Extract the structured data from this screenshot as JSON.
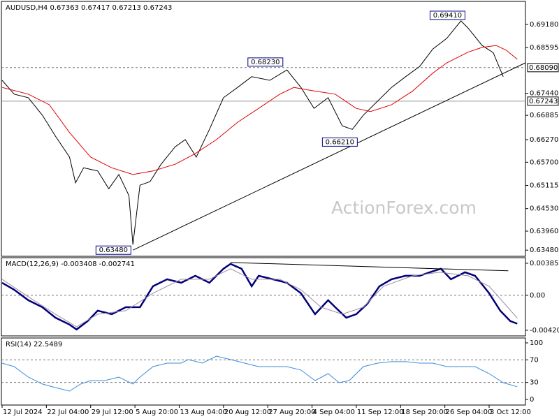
{
  "chart_data": [
    {
      "type": "line",
      "title": "AUDUSD,H4  0.67363 0.67417 0.67213 0.67243",
      "watermark": "ActionForex.com",
      "xlim": [
        -0.7,
        520.1
      ],
      "ylim": [
        0.63325,
        0.69762
      ],
      "yticks": [
        {
          "value": 0.6918,
          "label": "0.69180"
        },
        {
          "value": 0.68595,
          "label": "0.68595"
        },
        {
          "value": 0.6744,
          "label": "0.67440"
        },
        {
          "value": 0.66885,
          "label": "0.66885"
        },
        {
          "value": 0.6627,
          "label": "0.66270"
        },
        {
          "value": 0.657,
          "label": "0.65700"
        },
        {
          "value": 0.65115,
          "label": "0.65115"
        },
        {
          "value": 0.6453,
          "label": "0.64530"
        },
        {
          "value": 0.6396,
          "label": "0.63960"
        },
        {
          "value": 0.6348,
          "label": "0.63480"
        }
      ],
      "series": [
        {
          "color": "#000000",
          "width": 1,
          "x": [
            0,
            12,
            26,
            40,
            53,
            67,
            73,
            81,
            95,
            106,
            116,
            126,
            130,
            137,
            147,
            158,
            172,
            182,
            193,
            206,
            220,
            234,
            248,
            266,
            283,
            297,
            310,
            324,
            338,
            348,
            359,
            373,
            387,
            401,
            415,
            428,
            442,
            456,
            463,
            477,
            488,
            498
          ],
          "values": [
            0.6777,
            0.6742,
            0.6733,
            0.6689,
            0.6636,
            0.6583,
            0.6518,
            0.6556,
            0.6548,
            0.6503,
            0.6539,
            0.6486,
            0.6362,
            0.6512,
            0.6521,
            0.6565,
            0.6609,
            0.6627,
            0.6583,
            0.6653,
            0.6733,
            0.6759,
            0.6786,
            0.6777,
            0.6803,
            0.6759,
            0.6706,
            0.6733,
            0.6662,
            0.6653,
            0.6689,
            0.6724,
            0.6759,
            0.6786,
            0.6812,
            0.6856,
            0.6883,
            0.6927,
            0.6909,
            0.6865,
            0.6847,
            0.6786
          ]
        },
        {
          "color": "#e00000",
          "width": 1,
          "x": [
            0,
            26,
            47,
            67,
            88,
            109,
            130,
            150,
            172,
            192,
            213,
            234,
            255,
            276,
            290,
            310,
            331,
            352,
            366,
            387,
            408,
            428,
            442,
            463,
            477,
            491,
            501,
            512
          ],
          "values": [
            0.6759,
            0.6742,
            0.6715,
            0.6645,
            0.6583,
            0.6556,
            0.6539,
            0.6548,
            0.6565,
            0.6592,
            0.6627,
            0.6671,
            0.6706,
            0.6742,
            0.6759,
            0.675,
            0.6742,
            0.6706,
            0.6698,
            0.6715,
            0.675,
            0.6795,
            0.6821,
            0.6848,
            0.686,
            0.6865,
            0.6853,
            0.683
          ]
        },
        {
          "color": "#000000",
          "width": 1,
          "x": [
            130,
            520
          ],
          "values": [
            0.6348,
            0.6821
          ]
        }
      ],
      "levels": [
        {
          "value": 0.6809,
          "label": "0.68090",
          "style": "dashed"
        },
        {
          "value": 0.67243,
          "label": "0.67243",
          "style": "solid"
        }
      ],
      "annotations": [
        {
          "x": 128,
          "value": 0.6348,
          "label": "0.63480"
        },
        {
          "x": 279,
          "value": 0.6823,
          "label": "0.68230"
        },
        {
          "x": 353,
          "value": 0.6621,
          "label": "0.66210"
        },
        {
          "x": 460,
          "value": 0.6941,
          "label": "0.69410"
        }
      ]
    },
    {
      "type": "line",
      "title": "MACD(12,26,9) -0.003408 -0.002741",
      "xlim": [
        -0.7,
        520.1
      ],
      "ylim": [
        -0.00488,
        0.00452
      ],
      "yticks": [
        {
          "value": 0.003852,
          "label": "0.003852"
        },
        {
          "value": 0,
          "label": "0.00"
        },
        {
          "value": -0.004204,
          "label": "-0.004204"
        }
      ],
      "series": [
        {
          "color": "#00007a",
          "width": 2.5,
          "x": [
            0,
            12,
            26,
            40,
            53,
            67,
            74,
            85,
            95,
            109,
            123,
            137,
            150,
            164,
            178,
            192,
            206,
            220,
            227,
            238,
            248,
            255,
            269,
            283,
            297,
            311,
            324,
            331,
            342,
            352,
            363,
            375,
            387,
            401,
            415,
            425,
            436,
            446,
            460,
            470,
            484,
            495,
            505,
            512
          ],
          "values": [
            0.00151,
            0.00067,
            -0.00059,
            -0.00143,
            -0.00269,
            -0.00352,
            -0.00411,
            -0.0031,
            -0.00185,
            -0.00227,
            -0.00143,
            -0.00143,
            0.00109,
            0.00193,
            0.00151,
            0.00235,
            0.00151,
            0.00319,
            0.00377,
            0.00319,
            0.00109,
            0.00235,
            0.00193,
            0.00151,
            0.00025,
            -0.00227,
            -0.00059,
            -0.00143,
            -0.00269,
            -0.00227,
            -0.00101,
            0.00109,
            0.00193,
            0.00235,
            0.00235,
            0.00277,
            0.00319,
            0.00193,
            0.00277,
            0.00235,
            0.00025,
            -0.00185,
            -0.0031,
            -0.00341
          ]
        },
        {
          "color": "#a08ca0",
          "width": 1,
          "x": [
            0,
            26,
            53,
            74,
            95,
            123,
            150,
            178,
            206,
            227,
            248,
            276,
            297,
            317,
            338,
            359,
            379,
            408,
            435,
            463,
            484,
            512
          ],
          "values": [
            0.00193,
            -0.00017,
            -0.00227,
            -0.00378,
            -0.00227,
            -0.00185,
            0.00025,
            0.00193,
            0.00193,
            0.00319,
            0.00193,
            0.00193,
            0.00067,
            -0.00143,
            -0.00227,
            -0.00143,
            0.00109,
            0.00235,
            0.00277,
            0.00235,
            0.00109,
            -0.00274
          ]
        },
        {
          "color": "#000000",
          "width": 1,
          "x": [
            227,
            503
          ],
          "values": [
            0.00394,
            0.00294
          ]
        }
      ],
      "levels": [
        {
          "value": 0,
          "style": "dashed"
        }
      ]
    },
    {
      "type": "line",
      "title": "RSI(14) 22.5489",
      "xlim": [
        -0.7,
        520.1
      ],
      "ylim": [
        -9.9,
        108.6
      ],
      "yticks": [
        100,
        70,
        30,
        0
      ],
      "series": [
        {
          "color": "#3c8cdc",
          "width": 1,
          "x": [
            0,
            12,
            26,
            40,
            53,
            67,
            78,
            88,
            102,
            116,
            130,
            137,
            150,
            164,
            178,
            185,
            199,
            213,
            227,
            241,
            255,
            269,
            283,
            297,
            311,
            324,
            335,
            345,
            359,
            373,
            387,
            401,
            415,
            428,
            442,
            456,
            470,
            484,
            498,
            512
          ],
          "values": [
            64.2,
            58,
            39.5,
            27.2,
            21,
            14.8,
            27.2,
            33.3,
            33.3,
            39.5,
            27.2,
            39.5,
            58,
            64.2,
            64.2,
            70.4,
            64.2,
            76.5,
            70.4,
            64.2,
            58,
            58,
            58,
            51.9,
            33.3,
            45.7,
            29.6,
            33.3,
            58,
            64.2,
            66.7,
            66.7,
            64.2,
            64.2,
            58,
            58,
            58,
            45.7,
            29.6,
            22.5
          ]
        }
      ],
      "levels": [
        {
          "value": 70,
          "style": "dashed"
        },
        {
          "value": 30,
          "style": "dashed"
        }
      ],
      "xticks": [
        {
          "value": 0,
          "label": "12 Jul 2024"
        },
        {
          "value": 44,
          "label": "22 Jul 04:00"
        },
        {
          "value": 88,
          "label": "29 Jul 12:00"
        },
        {
          "value": 132,
          "label": "5 Aug 20:00"
        },
        {
          "value": 176,
          "label": "13 Aug 04:00"
        },
        {
          "value": 220,
          "label": "20 Aug 12:00"
        },
        {
          "value": 264,
          "label": "27 Aug 20:00"
        },
        {
          "value": 308,
          "label": "4 Sep 04:00"
        },
        {
          "value": 352,
          "label": "11 Sep 12:00"
        },
        {
          "value": 396,
          "label": "18 Sep 20:00"
        },
        {
          "value": 440,
          "label": "26 Sep 04:00"
        },
        {
          "value": 484,
          "label": "3 Oct 12:00"
        }
      ]
    }
  ]
}
